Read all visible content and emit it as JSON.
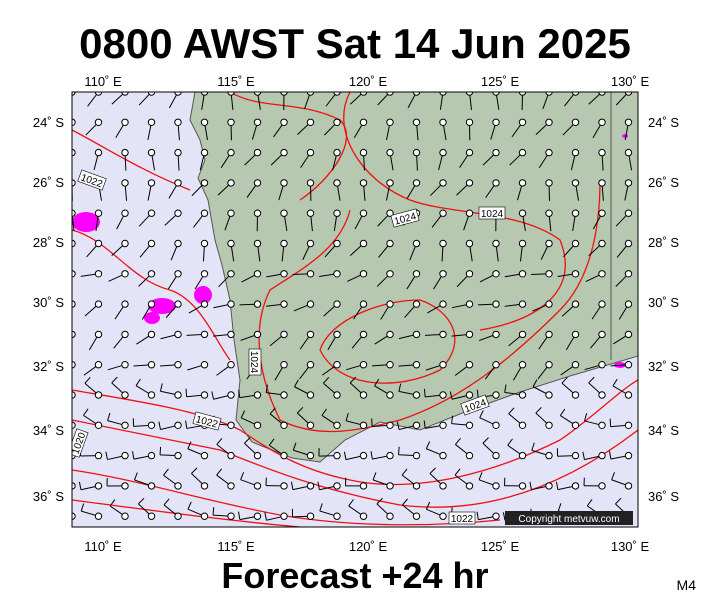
{
  "header": {
    "title": "0800 AWST Sat 14 Jun 2025"
  },
  "map": {
    "lon_labels": [
      "110˚ E",
      "115˚ E",
      "120˚ E",
      "125˚ E",
      "130˚ E"
    ],
    "lat_labels": [
      "24˚ S",
      "26˚ S",
      "28˚ S",
      "30˚ S",
      "32˚ S",
      "34˚ S",
      "36˚ S"
    ],
    "isobar_labels": [
      "1022",
      "1024",
      "1024",
      "1024",
      "1024",
      "1022",
      "1022",
      "1020"
    ],
    "copyright": "Copyright metvuw.com"
  },
  "footer": {
    "forecast": "Forecast +24 hr",
    "model": "M4"
  }
}
